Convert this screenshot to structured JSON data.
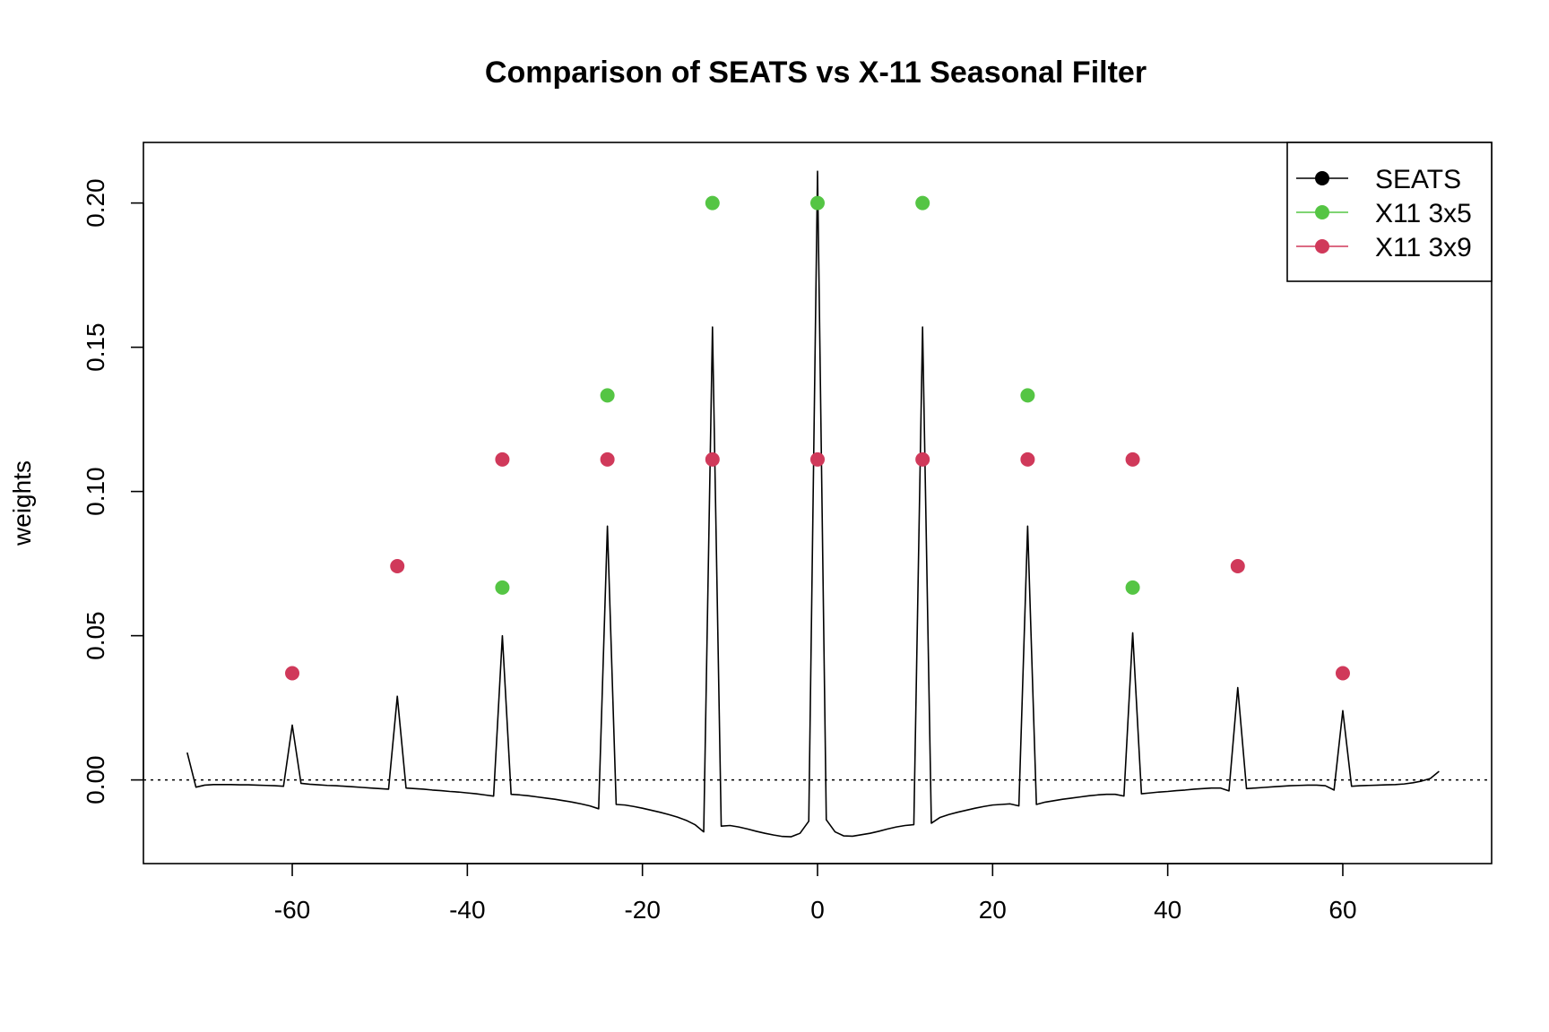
{
  "chart_data": {
    "type": "line",
    "title": "Comparison of SEATS vs X-11 Seasonal Filter",
    "xlabel": "",
    "ylabel": "weights",
    "xlim": [
      -77,
      77
    ],
    "ylim": [
      -0.029,
      0.221
    ],
    "x_ticks": [
      -60,
      -40,
      -20,
      0,
      20,
      40,
      60
    ],
    "y_ticks": [
      0.0,
      0.05,
      0.1,
      0.15,
      0.2
    ],
    "y_tick_labels": [
      "0.00",
      "0.05",
      "0.10",
      "0.15",
      "0.20"
    ],
    "reference_line": {
      "y": 0,
      "style": "dotted"
    },
    "legend": {
      "position": "top-right"
    },
    "series": [
      {
        "name": "SEATS",
        "color": "#000000",
        "style": "line",
        "x": [
          -72,
          -71,
          -70,
          -69,
          -68,
          -67,
          -66,
          -65,
          -64,
          -63,
          -62,
          -61,
          -60,
          -59,
          -58,
          -57,
          -56,
          -55,
          -54,
          -53,
          -52,
          -51,
          -50,
          -49,
          -48,
          -47,
          -46,
          -45,
          -44,
          -43,
          -42,
          -41,
          -40,
          -39,
          -38,
          -37,
          -36,
          -35,
          -34,
          -33,
          -32,
          -31,
          -30,
          -29,
          -28,
          -27,
          -26,
          -25,
          -24,
          -23,
          -22,
          -21,
          -20,
          -19,
          -18,
          -17,
          -16,
          -15,
          -14,
          -13,
          -12,
          -11,
          -10,
          -9,
          -8,
          -7,
          -6,
          -5,
          -4,
          -3,
          -2,
          -1,
          0,
          1,
          2,
          3,
          4,
          5,
          6,
          7,
          8,
          9,
          10,
          11,
          12,
          13,
          14,
          15,
          16,
          17,
          18,
          19,
          20,
          21,
          22,
          23,
          24,
          25,
          26,
          27,
          28,
          29,
          30,
          31,
          32,
          33,
          34,
          35,
          36,
          37,
          38,
          39,
          40,
          41,
          42,
          43,
          44,
          45,
          46,
          47,
          48,
          49,
          50,
          51,
          52,
          53,
          54,
          55,
          56,
          57,
          58,
          59,
          60,
          61,
          62,
          63,
          64,
          65,
          66,
          67,
          68,
          69,
          70,
          71
        ],
        "y": [
          0.0095,
          -0.0025,
          -0.0018,
          -0.0016,
          -0.0016,
          -0.0016,
          -0.0017,
          -0.0017,
          -0.0018,
          -0.0019,
          -0.002,
          -0.0022,
          0.019,
          -0.0012,
          -0.0015,
          -0.0017,
          -0.0019,
          -0.002,
          -0.0022,
          -0.0024,
          -0.0026,
          -0.0028,
          -0.003,
          -0.0032,
          0.029,
          -0.0028,
          -0.003,
          -0.0032,
          -0.0035,
          -0.0037,
          -0.004,
          -0.0042,
          -0.0045,
          -0.0048,
          -0.0052,
          -0.0056,
          0.05,
          -0.005,
          -0.0052,
          -0.0055,
          -0.0059,
          -0.0063,
          -0.0067,
          -0.0072,
          -0.0077,
          -0.0083,
          -0.009,
          -0.01,
          0.088,
          -0.0085,
          -0.0087,
          -0.0092,
          -0.0098,
          -0.0105,
          -0.0112,
          -0.012,
          -0.0129,
          -0.014,
          -0.0155,
          -0.018,
          0.157,
          -0.016,
          -0.0158,
          -0.0163,
          -0.017,
          -0.0178,
          -0.0185,
          -0.0191,
          -0.0196,
          -0.0197,
          -0.0185,
          -0.0143,
          0.211,
          -0.0138,
          -0.018,
          -0.0194,
          -0.0195,
          -0.019,
          -0.0185,
          -0.0178,
          -0.017,
          -0.0163,
          -0.0158,
          -0.0155,
          0.157,
          -0.015,
          -0.013,
          -0.012,
          -0.0112,
          -0.0105,
          -0.0098,
          -0.0092,
          -0.0087,
          -0.0085,
          -0.0083,
          -0.009,
          0.088,
          -0.0085,
          -0.0077,
          -0.0072,
          -0.0067,
          -0.0063,
          -0.0059,
          -0.0055,
          -0.0052,
          -0.005,
          -0.005,
          -0.0056,
          0.051,
          -0.0048,
          -0.0045,
          -0.0042,
          -0.004,
          -0.0037,
          -0.0035,
          -0.0032,
          -0.003,
          -0.0028,
          -0.0028,
          -0.0038,
          0.032,
          -0.003,
          -0.0028,
          -0.0026,
          -0.0024,
          -0.0022,
          -0.002,
          -0.0019,
          -0.0018,
          -0.0018,
          -0.002,
          -0.0035,
          0.024,
          -0.0022,
          -0.002,
          -0.0019,
          -0.0018,
          -0.0017,
          -0.0016,
          -0.0014,
          -0.001,
          -0.0004,
          0.0005,
          0.003
        ]
      },
      {
        "name": "X11 3x5",
        "color": "#55C544",
        "style": "points",
        "x": [
          -36,
          -24,
          -12,
          0,
          12,
          24,
          36
        ],
        "y": [
          0.0667,
          0.1333,
          0.2,
          0.2,
          0.2,
          0.1333,
          0.0667
        ]
      },
      {
        "name": "X11 3x9",
        "color": "#D0395A",
        "style": "points",
        "x": [
          -60,
          -48,
          -36,
          -24,
          -12,
          0,
          12,
          24,
          36,
          48,
          60
        ],
        "y": [
          0.037,
          0.0741,
          0.1111,
          0.1111,
          0.1111,
          0.1111,
          0.1111,
          0.1111,
          0.1111,
          0.0741,
          0.037
        ]
      }
    ]
  }
}
